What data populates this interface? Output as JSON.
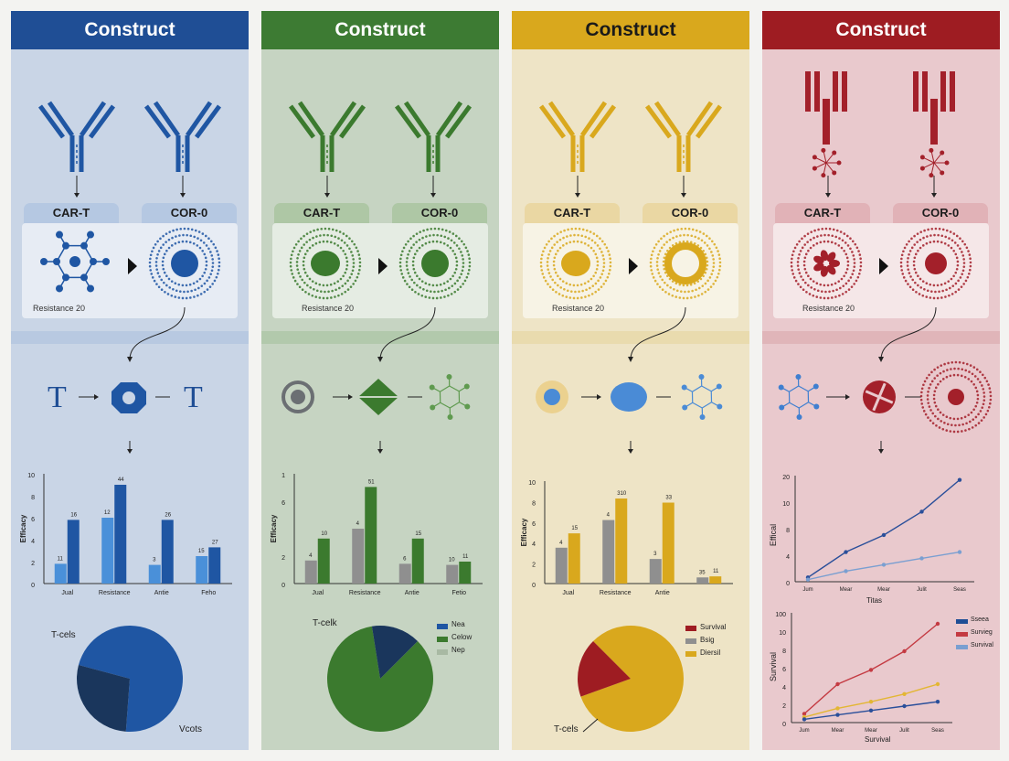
{
  "columns": [
    {
      "header": "Construct",
      "colors": {
        "header": "#1f4e95",
        "bg": "#c9d5e6",
        "accent": "#1f56a3",
        "light": "#4a90d9",
        "band": "#a9bfdd",
        "tag": "#b5c8e2"
      },
      "labels": {
        "car_t": "CAR-T",
        "cor": "COR-0",
        "resistance": "Resistance 20"
      },
      "flow": {
        "left": "T",
        "right": "T"
      },
      "bar_chart": {
        "ylabel": "Efficacy",
        "ymax": 10,
        "yticks": [
          "10",
          "8",
          "6",
          "4",
          "2",
          "0"
        ],
        "categories": [
          "Jual",
          "Resistance",
          "Antie",
          "Feho"
        ],
        "series_a": [
          1.8,
          6,
          1.7,
          2.5
        ],
        "series_b": [
          5.8,
          9,
          5.8,
          3.3
        ],
        "labels_a": [
          "11",
          "12",
          "3",
          "15"
        ],
        "labels_b": [
          "16",
          "44",
          "26",
          "27"
        ]
      },
      "pie": {
        "label_top": "T-cels",
        "label_bottom": "Vcots",
        "slices": [
          72,
          28
        ]
      }
    },
    {
      "header": "Construct",
      "colors": {
        "header": "#3d7b33",
        "bg": "#c6d4c2",
        "accent": "#3b7a2e",
        "light": "#5f9a4f",
        "band": "#a3bf9b",
        "tag": "#aec7a5"
      },
      "labels": {
        "car_t": "CAR-T",
        "cor": "COR-0",
        "resistance": "Resistance 20"
      },
      "bar_chart": {
        "ylabel": "Efficacy",
        "ymax": 10,
        "yticks": [
          "1",
          "6",
          "",
          "2",
          "0"
        ],
        "categories": [
          "Jual",
          "Resistance",
          "Antie",
          "Fetio"
        ],
        "series_a": [
          2.1,
          5,
          1.8,
          1.7
        ],
        "series_b": [
          4.1,
          8.8,
          4.1,
          2
        ],
        "labels_a": [
          "4",
          "4",
          "6",
          "10"
        ],
        "labels_b": [
          "10",
          "51",
          "15",
          "11"
        ]
      },
      "pie": {
        "label_top": "T-celk",
        "slices": [
          85,
          15
        ]
      },
      "legend": [
        "Nea",
        "Celow",
        "Nep"
      ]
    },
    {
      "header": "Construct",
      "colors": {
        "header": "#d9a81d",
        "bg": "#eee4c6",
        "accent": "#d9a81d",
        "light": "#e3b634",
        "band": "#e6d49a",
        "tag": "#ead7a3"
      },
      "labels": {
        "car_t": "CAR-T",
        "cor": "COR-0",
        "resistance": "Resistance 20"
      },
      "bar_chart": {
        "ylabel": "Efficacy",
        "ymax": 10,
        "yticks": [
          "10",
          "8",
          "6",
          "4",
          "2",
          "0"
        ],
        "categories": [
          "Jual",
          "Resistance",
          "Antie",
          ""
        ],
        "series_a": [
          3.5,
          6.2,
          2.4,
          0.6
        ],
        "series_b": [
          4.9,
          8.3,
          7.9,
          0.7
        ],
        "labels_a": [
          "4",
          "4",
          "3",
          "35"
        ],
        "labels_b": [
          "15",
          "310",
          "33",
          "11"
        ]
      },
      "pie": {
        "label_bottom": "T-cels",
        "slices": [
          82,
          18
        ]
      },
      "legend": [
        "Survival",
        "Bsig",
        "Diersil"
      ]
    },
    {
      "header": "Construct",
      "colors": {
        "header": "#9e1c22",
        "bg": "#e9c9cd",
        "accent": "#a3202a",
        "light": "#c43a42",
        "band": "#d9a4aa",
        "tag": "#e1b2b7"
      },
      "labels": {
        "car_t": "CAR-T",
        "cor": "COR-0",
        "resistance": "Resistance 20"
      },
      "line_chart": {
        "ylabel": "Effical",
        "xlabel": "Titas",
        "yticks": [
          "20",
          "10",
          "8",
          "4",
          "0"
        ],
        "categories": [
          "Jum",
          "Mear",
          "Mear",
          "Julit",
          "Seas"
        ],
        "series": [
          [
            1.0,
            7.0,
            11.0,
            16.5,
            24.0
          ],
          [
            0.5,
            2.5,
            4.0,
            5.5,
            7.0
          ]
        ]
      },
      "line_chart2": {
        "ylabel": "Survival",
        "xlabel": "Survival",
        "yticks": [
          "100",
          "10",
          "8",
          "6",
          "4",
          "2",
          "0"
        ],
        "categories": [
          "Jum",
          "Mear",
          "Mear",
          "Julit",
          "Seas"
        ],
        "series": [
          [
            0.8,
            3.5,
            4.8,
            6.5,
            9.0
          ],
          [
            0.5,
            1.3,
            1.9,
            2.6,
            3.5
          ],
          [
            0.3,
            0.7,
            1.1,
            1.5,
            1.9
          ]
        ],
        "legend": [
          "Sseea",
          "Survieg",
          "Survival"
        ],
        "legend_colors": [
          "#1f4e95",
          "#c43a42",
          "#7a9fd1"
        ]
      }
    }
  ]
}
